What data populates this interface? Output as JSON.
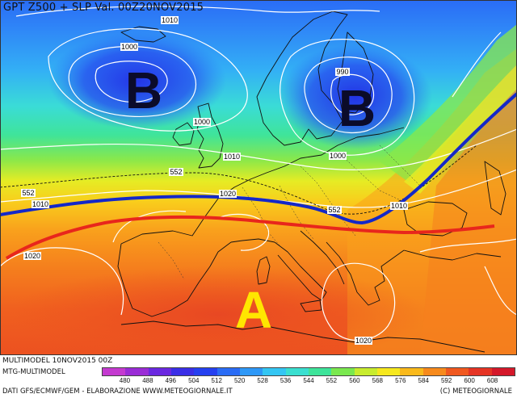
{
  "title": "GPT Z500 + SLP Val. 00Z20NOV2015",
  "footer": {
    "run": "MULTIMODEL 10NOV2015 00Z",
    "model": "MTG-MULTIMODEL",
    "sources": "DATI GFS/ECMWF/GEM - ELABORAZIONE WWW.METEOGIORNALE.IT",
    "copyright": "(C) METEOGIORNALE"
  },
  "pressure_centers": [
    {
      "label": "B",
      "type": "low",
      "color": "#0b0b2a"
    },
    {
      "label": "B",
      "type": "low",
      "color": "#0b0b2a"
    },
    {
      "label": "A",
      "type": "high",
      "color": "#ffe600"
    }
  ],
  "isobar_labels": [
    "1010",
    "1000",
    "1000",
    "990",
    "1010",
    "1000",
    "1020",
    "1010",
    "1010",
    "1020",
    "1020"
  ],
  "isohypse_labels": [
    "552",
    "552",
    "552"
  ],
  "colorbar": {
    "labels": [
      "480",
      "488",
      "496",
      "504",
      "512",
      "520",
      "528",
      "536",
      "544",
      "552",
      "560",
      "568",
      "576",
      "584",
      "592",
      "600",
      "608"
    ],
    "colors": [
      "#c43ad0",
      "#9a2cd6",
      "#6a28e0",
      "#3a2ee6",
      "#2540f0",
      "#2a6cf5",
      "#2e98f7",
      "#34c6f3",
      "#3adfd0",
      "#3ee49a",
      "#7ae84f",
      "#c8ec2e",
      "#f6e81e",
      "#f9b91b",
      "#f78a1c",
      "#f0581f",
      "#e53424",
      "#d4182a"
    ]
  },
  "lines": {
    "blue_color": "#1428c8",
    "red_color": "#e8261c"
  }
}
